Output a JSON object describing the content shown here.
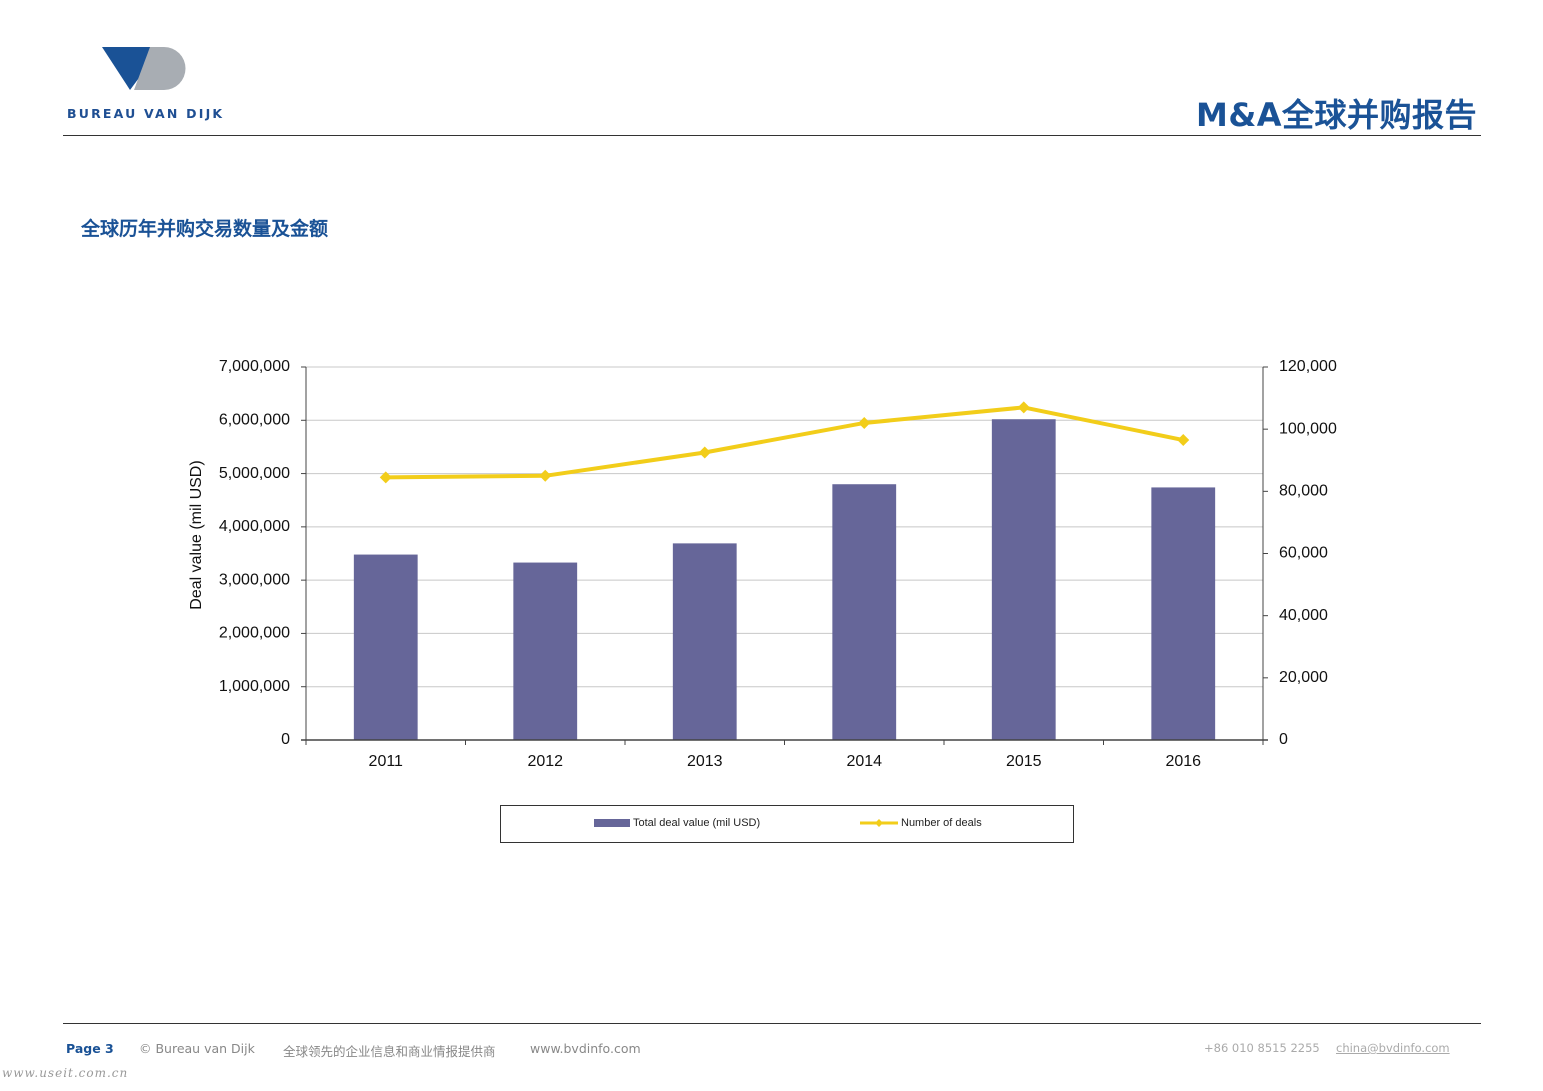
{
  "header": {
    "logo_text": "BUREAU VAN DIJK",
    "report_title": "M&A全球并购报告"
  },
  "section_title": "全球历年并购交易数量及金额",
  "chart_data": {
    "type": "bar",
    "categories": [
      "2011",
      "2012",
      "2013",
      "2014",
      "2015",
      "2016"
    ],
    "series": [
      {
        "name": "Total deal value (mil USD)",
        "type": "bar",
        "axis": "left",
        "color": "#666699",
        "values": [
          3480000,
          3330000,
          3690000,
          4800000,
          6020000,
          4740000
        ]
      },
      {
        "name": "Number of deals",
        "type": "line",
        "axis": "right",
        "color": "#f2cd1a",
        "values": [
          84500,
          85000,
          92500,
          102000,
          107000,
          96500
        ]
      }
    ],
    "ylabel": "Deal value (mil USD)",
    "xlabel": "",
    "ylim": [
      0,
      7000000
    ],
    "y2lim": [
      0,
      120000
    ],
    "yticks": [
      "0",
      "1,000,000",
      "2,000,000",
      "3,000,000",
      "4,000,000",
      "5,000,000",
      "6,000,000",
      "7,000,000"
    ],
    "y2ticks": [
      "0",
      "20,000",
      "40,000",
      "60,000",
      "80,000",
      "100,000",
      "120,000"
    ],
    "grid": true,
    "legend_position": "bottom"
  },
  "footer": {
    "page": "Page 3",
    "copyright": "© Bureau van Dijk",
    "tagline": "全球领先的企业信息和商业情报提供商",
    "website": "www.bvdinfo.com",
    "phone": "+86 010 8515 2255",
    "email": "china@bvdinfo.com"
  },
  "watermark": "www.useit.com.cn"
}
